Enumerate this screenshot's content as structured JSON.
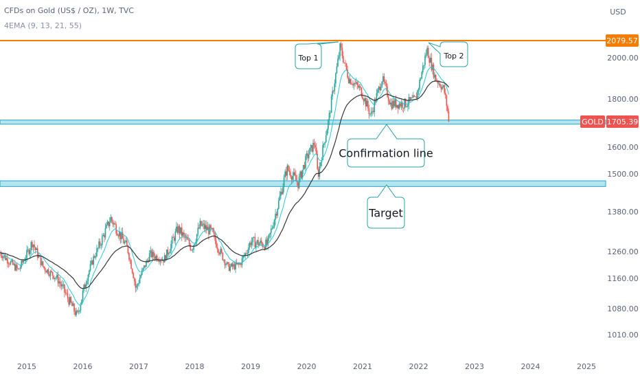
{
  "header": {
    "title": "CFDs on Gold (US$ / OZ), 1W, TVC",
    "indicator": "4EMA (9, 13, 21, 55)"
  },
  "currency": "USD",
  "price_badges": {
    "resistance": "2079.57",
    "symbol": "GOLD",
    "last": "1705.39"
  },
  "annotations": {
    "top1": "Top 1",
    "top2": "Top 2",
    "confirmation": "Confirmation line",
    "target": "Target"
  },
  "colors": {
    "resistance": "#f57c00",
    "zone_fill": "#b3e5f0",
    "zone_border": "#26a3c5",
    "up": "#26a69a",
    "down": "#ef5350",
    "badge_red": "#ef5350",
    "ema_fast": "#26c6da",
    "ema_slow": "#333333",
    "callout_border": "#26a3a3"
  },
  "chart_data": {
    "type": "line",
    "series_kind": "candlestick",
    "y_ticks": [
      2000,
      1800,
      1600,
      1500,
      1380,
      1260,
      1160,
      1080,
      1010
    ],
    "y_tick_labels": [
      "2000.00",
      "1800.00",
      "1600.00",
      "1500.00",
      "1380.00",
      "1260.00",
      "1160.00",
      "1080.00",
      "1010.00"
    ],
    "x_ticks": [
      "2015",
      "2016",
      "2017",
      "2018",
      "2019",
      "2020",
      "2021",
      "2022",
      "2023",
      "2024",
      "2025"
    ],
    "resistance_level": 2079.57,
    "last_price": 1705.39,
    "confirmation_zone": [
      1695,
      1712
    ],
    "target_zone": [
      1460,
      1478
    ],
    "price_anchors": [
      [
        2014.2,
        1320
      ],
      [
        2014.6,
        1240
      ],
      [
        2014.85,
        1190
      ],
      [
        2015.1,
        1290
      ],
      [
        2015.3,
        1200
      ],
      [
        2015.55,
        1160
      ],
      [
        2015.9,
        1060
      ],
      [
        2016.2,
        1240
      ],
      [
        2016.5,
        1360
      ],
      [
        2016.8,
        1270
      ],
      [
        2016.95,
        1130
      ],
      [
        2017.2,
        1250
      ],
      [
        2017.45,
        1230
      ],
      [
        2017.7,
        1330
      ],
      [
        2017.95,
        1270
      ],
      [
        2018.1,
        1340
      ],
      [
        2018.3,
        1320
      ],
      [
        2018.6,
        1200
      ],
      [
        2018.8,
        1210
      ],
      [
        2019.0,
        1290
      ],
      [
        2019.3,
        1280
      ],
      [
        2019.5,
        1410
      ],
      [
        2019.65,
        1520
      ],
      [
        2019.85,
        1470
      ],
      [
        2020.0,
        1560
      ],
      [
        2020.15,
        1620
      ],
      [
        2020.2,
        1490
      ],
      [
        2020.4,
        1720
      ],
      [
        2020.6,
        2050
      ],
      [
        2020.75,
        1900
      ],
      [
        2020.95,
        1850
      ],
      [
        2021.15,
        1730
      ],
      [
        2021.35,
        1900
      ],
      [
        2021.5,
        1780
      ],
      [
        2021.75,
        1780
      ],
      [
        2021.95,
        1800
      ],
      [
        2022.15,
        2040
      ],
      [
        2022.3,
        1900
      ],
      [
        2022.45,
        1850
      ],
      [
        2022.55,
        1705
      ]
    ]
  }
}
